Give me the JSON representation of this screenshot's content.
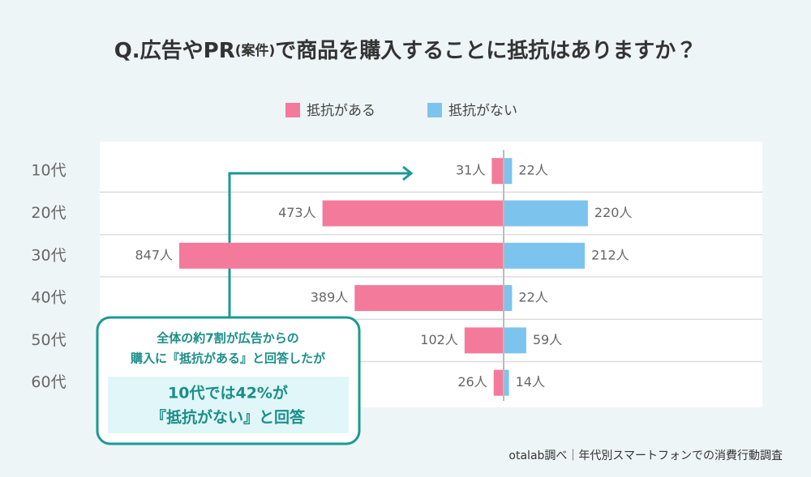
{
  "chart_data": {
    "type": "diverging-bar",
    "title_parts": [
      "Q.広告やPR",
      "(案件)",
      "で商品を購入することに抵抗はありますか？"
    ],
    "categories": [
      "10代",
      "20代",
      "30代",
      "40代",
      "50代",
      "60代"
    ],
    "series": [
      {
        "name": "抵抗がある",
        "color": "#f47a9b",
        "values": [
          31,
          473,
          847,
          389,
          102,
          26
        ],
        "value_labels": [
          "31人",
          "473人",
          "847人",
          "389人",
          "102人",
          "26人"
        ]
      },
      {
        "name": "抵抗がない",
        "color": "#7cc4ee",
        "values": [
          22,
          220,
          212,
          22,
          59,
          14
        ],
        "value_labels": [
          "22人",
          "220人",
          "212人",
          "22人",
          "59人",
          "14人"
        ]
      }
    ],
    "annotation": {
      "lines": [
        "全体の約7割が広告からの",
        "購入に『抵抗がある』と回答したが"
      ],
      "highlight": [
        "10代では42%が",
        "『抵抗がない』と回答"
      ]
    },
    "source": "otalab調べ｜年代別スマートフォンでの消費行動調査"
  }
}
